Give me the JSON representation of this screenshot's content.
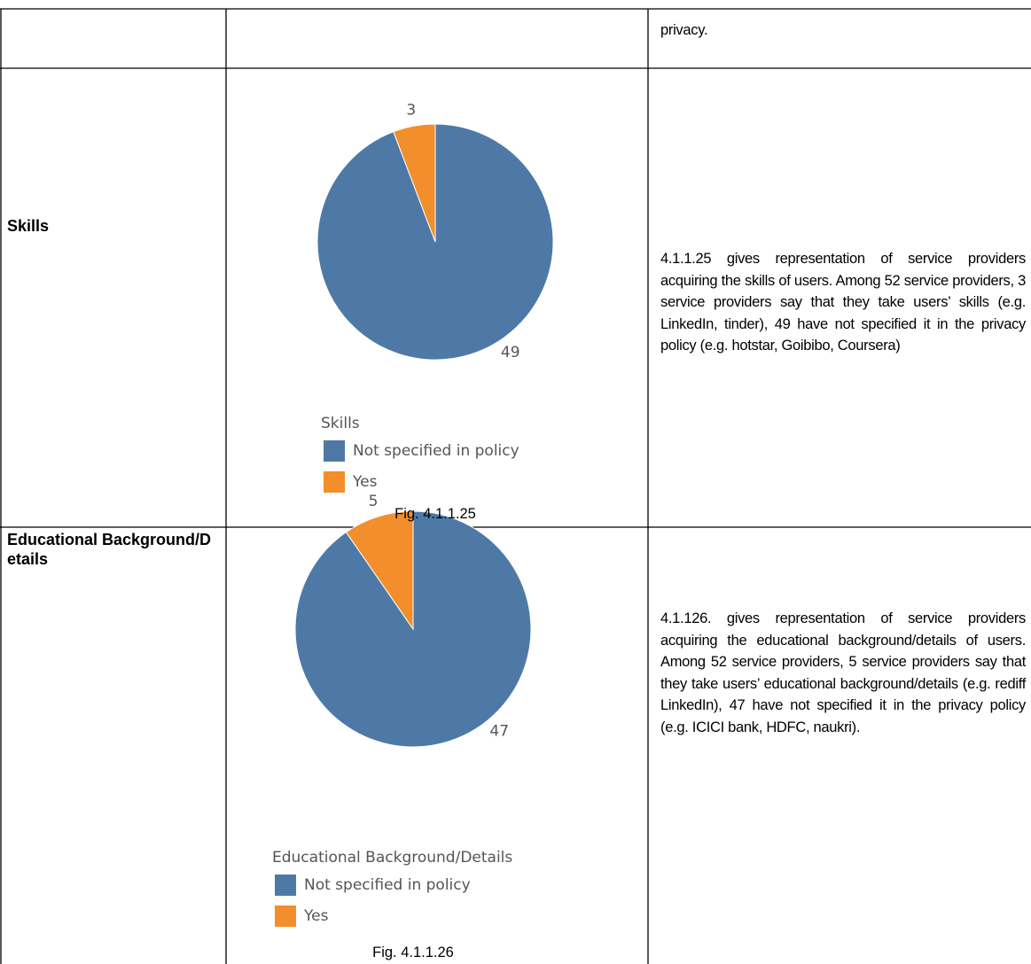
{
  "table": {
    "rows": [
      {
        "description": "privacy."
      },
      {
        "topic": "Skills",
        "chart": {
          "type": "pie",
          "legend_title": "Skills",
          "categories": [
            "Not specified in policy",
            "Yes"
          ],
          "values": [
            49,
            3
          ],
          "colors": [
            "#4e79a7",
            "#f28e2b"
          ]
        },
        "caption": "Fig. 4.1.1.25",
        "description": "4.1.1.25 gives representation of service providers acquiring the skills of users. Among 52 service providers, 3 service providers say that they take users’ skills (e.g. LinkedIn, tinder), 49 have not specified it in the privacy policy (e.g. hotstar, Goibibo, Coursera)"
      },
      {
        "topic": "Educational Background/Details",
        "chart": {
          "type": "pie",
          "legend_title": "Educational Background/Details",
          "categories": [
            "Not specified in policy",
            "Yes"
          ],
          "values": [
            47,
            5
          ],
          "colors": [
            "#4e79a7",
            "#f28e2b"
          ]
        },
        "caption": "Fig. 4.1.1.26",
        "description": "4.1.126. gives representation of service providers acquiring the educational background/details of users. Among 52 service providers, 5 service providers say that they take users’ educational background/details (e.g. rediff LinkedIn), 47 have not specified it in the privacy policy (e.g. ICICI bank, HDFC, naukri)."
      }
    ]
  }
}
